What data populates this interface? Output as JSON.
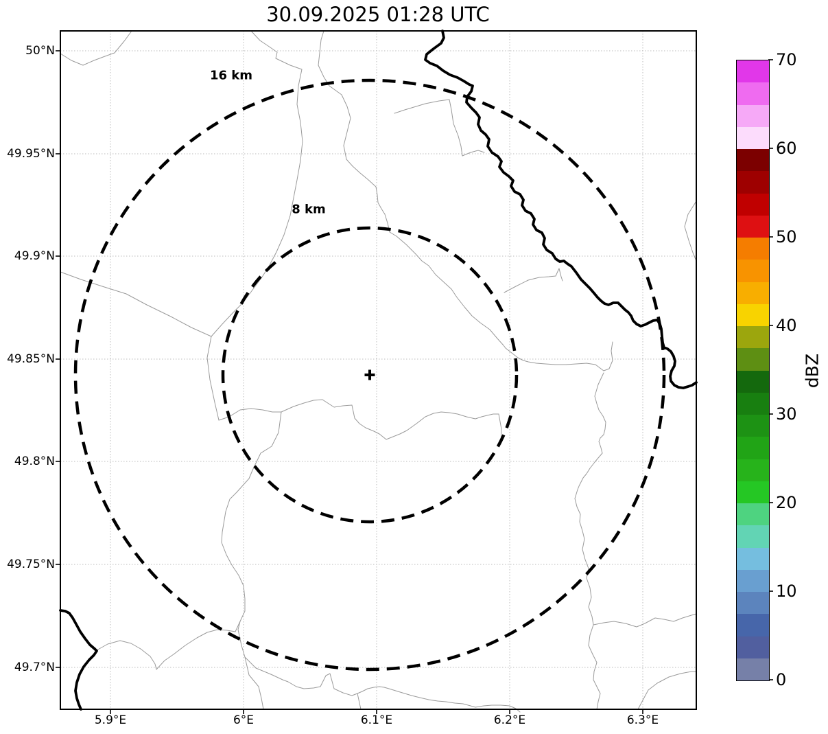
{
  "title": "30.09.2025 01:28 UTC",
  "map": {
    "projection_grid": true,
    "x_axis_tick_labels": [
      "5.9°E",
      "6°E",
      "6.1°E",
      "6.2°E",
      "6.3°E"
    ],
    "y_axis_tick_labels": [
      "50°N",
      "49.95°N",
      "49.9°N",
      "49.85°N",
      "49.8°N",
      "49.75°N",
      "49.7°N"
    ],
    "range_rings": [
      {
        "label": "16 km",
        "radius_km": 16
      },
      {
        "label": "8 km",
        "radius_km": 8
      }
    ],
    "radar_site_marker": "+",
    "features": {
      "river_color": "#000000",
      "admin_boundary_color": "#9a9a9a",
      "gridline_color": "#bbbbbb"
    }
  },
  "colorbar": {
    "label": "dBZ",
    "min": 0,
    "max": 70,
    "step_dbz": 2.5,
    "tick_labels": [
      "70",
      "60",
      "50",
      "40",
      "30",
      "20",
      "10",
      "0"
    ],
    "segment_colors_top_to_bottom": [
      "#e137e9",
      "#ef6bf0",
      "#f6a9f7",
      "#fcdcfc",
      "#7c0000",
      "#9e0000",
      "#c00000",
      "#de1012",
      "#f57d00",
      "#f89300",
      "#f8ae00",
      "#f8d300",
      "#9ca60d",
      "#5e8f13",
      "#14690d",
      "#187f10",
      "#1d9214",
      "#21a416",
      "#27b31b",
      "#25c724",
      "#4ed380",
      "#62d4b4",
      "#75bedf",
      "#699fd0",
      "#5c84bd",
      "#4766aa",
      "#515f9f",
      "#7680a8"
    ]
  }
}
